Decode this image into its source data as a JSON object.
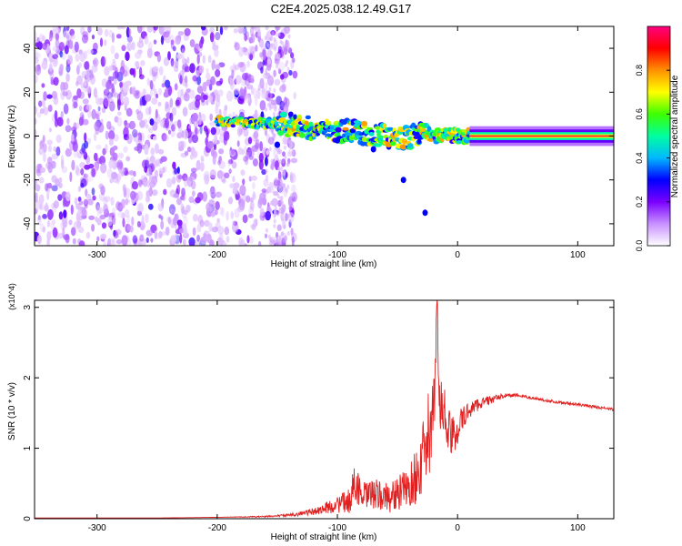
{
  "title": "C2E4.2025.038.12.49.G17",
  "chart_data": [
    {
      "type": "heatmap",
      "xlabel": "Height of straight line (km)",
      "ylabel": "Frequency (Hz)",
      "xlim": [
        -352,
        130
      ],
      "ylim": [
        -50,
        50
      ],
      "x_ticks": [
        -300,
        -200,
        -100,
        0,
        100
      ],
      "y_ticks": [
        -40,
        -20,
        0,
        20,
        40
      ],
      "colorbar": {
        "label": "Normalized spectral amplitude",
        "range": [
          0,
          1
        ],
        "ticks": [
          "0.0",
          "0.2",
          "0.4",
          "0.6",
          "0.8"
        ],
        "colors": [
          "#ffffff",
          "#c890ff",
          "#7a00ff",
          "#0000ff",
          "#00b8ff",
          "#00ffa0",
          "#3cff00",
          "#ffff00",
          "#ff9000",
          "#ff0000",
          "#ff0080"
        ]
      },
      "features": [
        {
          "name": "noise",
          "x_range": [
            -352,
            -145
          ],
          "y_range": [
            -50,
            50
          ],
          "amplitude": 0.12
        },
        {
          "name": "signal-track",
          "points": [
            [
              -200,
              7
            ],
            [
              -170,
              6
            ],
            [
              -150,
              6
            ],
            [
              -130,
              4
            ],
            [
              -110,
              3
            ],
            [
              -90,
              2
            ],
            [
              -70,
              1
            ],
            [
              -50,
              -1
            ],
            [
              -35,
              0
            ],
            [
              -28,
              3
            ],
            [
              -20,
              0
            ],
            [
              -10,
              1
            ],
            [
              0,
              0
            ],
            [
              10,
              0
            ],
            [
              130,
              0
            ]
          ],
          "amplitude": 0.9
        },
        {
          "name": "scatter-blobs",
          "points": [
            [
              -70,
              -6
            ],
            [
              -45,
              -20
            ],
            [
              -27,
              -35
            ],
            [
              -150,
              -4
            ],
            [
              -100,
              -2
            ]
          ],
          "amplitude": 0.3
        }
      ]
    },
    {
      "type": "line",
      "xlabel": "Height of straight line (km)",
      "ylabel": "SNR (10 * v/v)",
      "y_multiplier": "(x10^4)",
      "xlim": [
        -352,
        130
      ],
      "ylim": [
        0,
        3.1
      ],
      "x_ticks": [
        -300,
        -200,
        -100,
        0,
        100
      ],
      "y_ticks": [
        0,
        1,
        2,
        3
      ],
      "color": "#e02020",
      "series": [
        {
          "x": [
            -352,
            -300,
            -250,
            -200,
            -160,
            -140,
            -120,
            -110,
            -100,
            -90,
            -85,
            -80,
            -70,
            -60,
            -50,
            -40,
            -30,
            -25,
            -20,
            -17,
            -15,
            -10,
            -5,
            0,
            10,
            20,
            30,
            40,
            50,
            60,
            80,
            100,
            130
          ],
          "values": [
            0.01,
            0.01,
            0.01,
            0.02,
            0.03,
            0.05,
            0.1,
            0.15,
            0.2,
            0.25,
            0.55,
            0.3,
            0.35,
            0.3,
            0.35,
            0.45,
            0.75,
            1.15,
            1.3,
            3.1,
            1.55,
            1.45,
            1.1,
            1.3,
            1.55,
            1.65,
            1.7,
            1.75,
            1.75,
            1.72,
            1.66,
            1.62,
            1.55
          ],
          "noise_amplitude": [
            0.0,
            0.0,
            0.0,
            0.0,
            0.01,
            0.02,
            0.05,
            0.08,
            0.12,
            0.18,
            0.3,
            0.2,
            0.22,
            0.22,
            0.25,
            0.3,
            0.5,
            0.6,
            0.7,
            0.0,
            0.6,
            0.4,
            0.35,
            0.25,
            0.12,
            0.08,
            0.05,
            0.03,
            0.02,
            0.02,
            0.02,
            0.02,
            0.02
          ]
        }
      ]
    }
  ]
}
